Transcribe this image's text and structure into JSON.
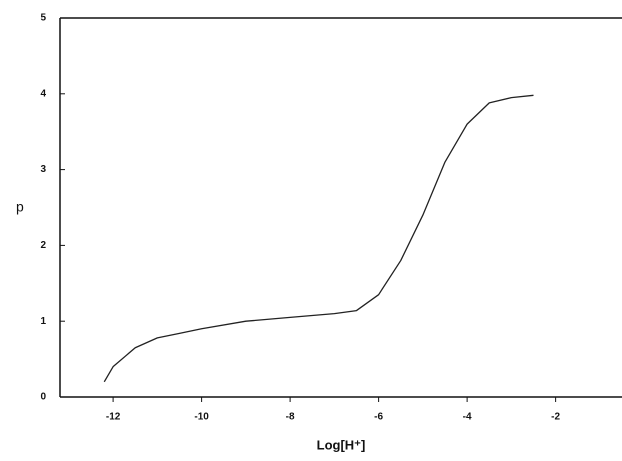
{
  "chart_data": {
    "type": "line",
    "x_label": "Log[H⁺]",
    "y_label": "p",
    "x": [
      -12.2,
      -12,
      -11.5,
      -11,
      -10.5,
      -10,
      -9,
      -8,
      -7,
      -6.5,
      -6,
      -5.5,
      -5,
      -4.5,
      -4,
      -3.5,
      -3,
      -2.5
    ],
    "series": [
      {
        "color": "#222222",
        "values": [
          0.2,
          0.4,
          0.65,
          0.78,
          0.84,
          0.9,
          1.0,
          1.05,
          1.1,
          1.14,
          1.35,
          1.8,
          2.4,
          3.1,
          3.6,
          3.88,
          3.95,
          3.98
        ]
      }
    ],
    "xlim": [
      -13.2,
      -0.5
    ],
    "ylim": [
      0,
      5
    ],
    "xticks": [
      -12,
      -10,
      -8,
      -6,
      -4,
      -2
    ],
    "yticks": [
      0,
      1,
      2,
      3,
      4,
      5
    ]
  }
}
